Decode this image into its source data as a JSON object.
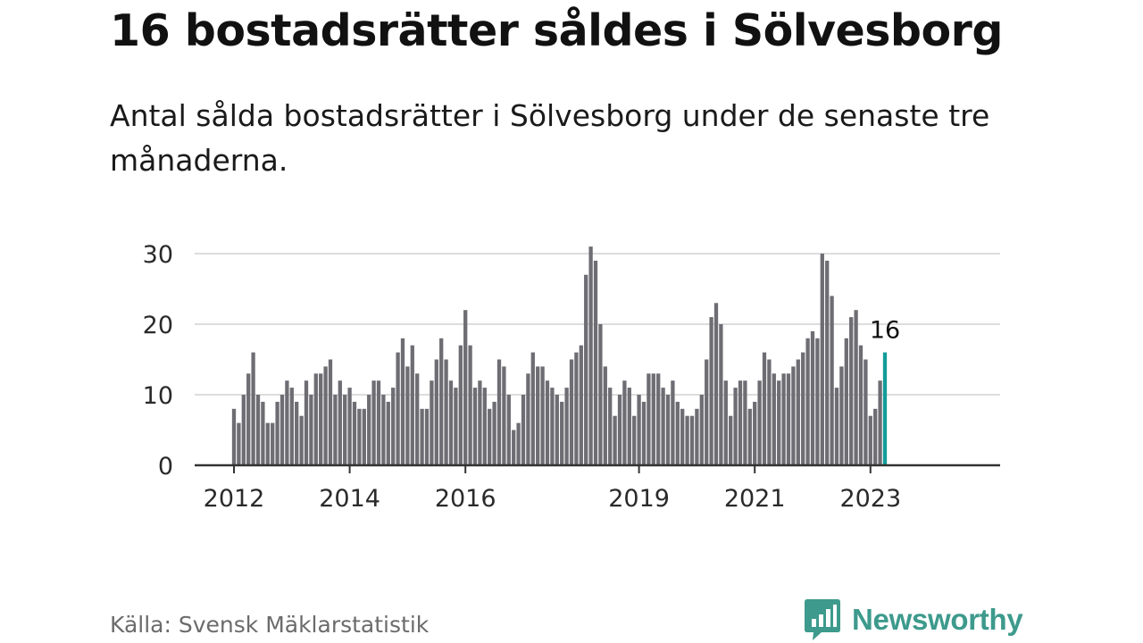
{
  "header": {
    "title": "16 bostadsrätter såldes i Sölvesborg",
    "subtitle": "Antal sålda bostadsrätter i Sölvesborg under de senaste tre månaderna."
  },
  "footer": {
    "source": "Källa: Svensk Mäklarstatistik",
    "brand": "Newsworthy",
    "brand_icon": "bar-chart-speech-bubble-icon"
  },
  "colors": {
    "bar": "#6e6d73",
    "highlight": "#139c99",
    "grid": "#dddddd",
    "axis": "#333333",
    "brand": "#3d9a8c"
  },
  "chart_data": {
    "type": "bar",
    "ylim": [
      0,
      30
    ],
    "yticks": [
      0,
      10,
      20,
      30
    ],
    "xticks": [
      "2012",
      "2014",
      "2016",
      "2019",
      "2021",
      "2023"
    ],
    "grid": true,
    "highlight_label": "16",
    "x_start": "2012-01",
    "x_end": "2023-04",
    "values": [
      8,
      6,
      10,
      13,
      16,
      10,
      9,
      6,
      6,
      9,
      10,
      12,
      11,
      9,
      7,
      12,
      10,
      13,
      13,
      14,
      15,
      10,
      12,
      10,
      11,
      9,
      8,
      8,
      10,
      12,
      12,
      10,
      9,
      11,
      16,
      18,
      14,
      17,
      13,
      8,
      8,
      12,
      15,
      18,
      15,
      12,
      11,
      17,
      22,
      17,
      11,
      12,
      11,
      8,
      9,
      15,
      14,
      10,
      5,
      6,
      10,
      13,
      16,
      14,
      14,
      12,
      11,
      10,
      9,
      11,
      15,
      16,
      17,
      27,
      31,
      29,
      20,
      14,
      11,
      7,
      10,
      12,
      11,
      7,
      10,
      9,
      13,
      13,
      13,
      11,
      10,
      12,
      9,
      8,
      7,
      7,
      8,
      10,
      15,
      21,
      23,
      20,
      12,
      7,
      11,
      12,
      12,
      8,
      9,
      12,
      16,
      15,
      13,
      12,
      13,
      13,
      14,
      15,
      16,
      18,
      19,
      18,
      30,
      29,
      24,
      11,
      14,
      18,
      21,
      22,
      17,
      15,
      7,
      8,
      12,
      16
    ]
  }
}
